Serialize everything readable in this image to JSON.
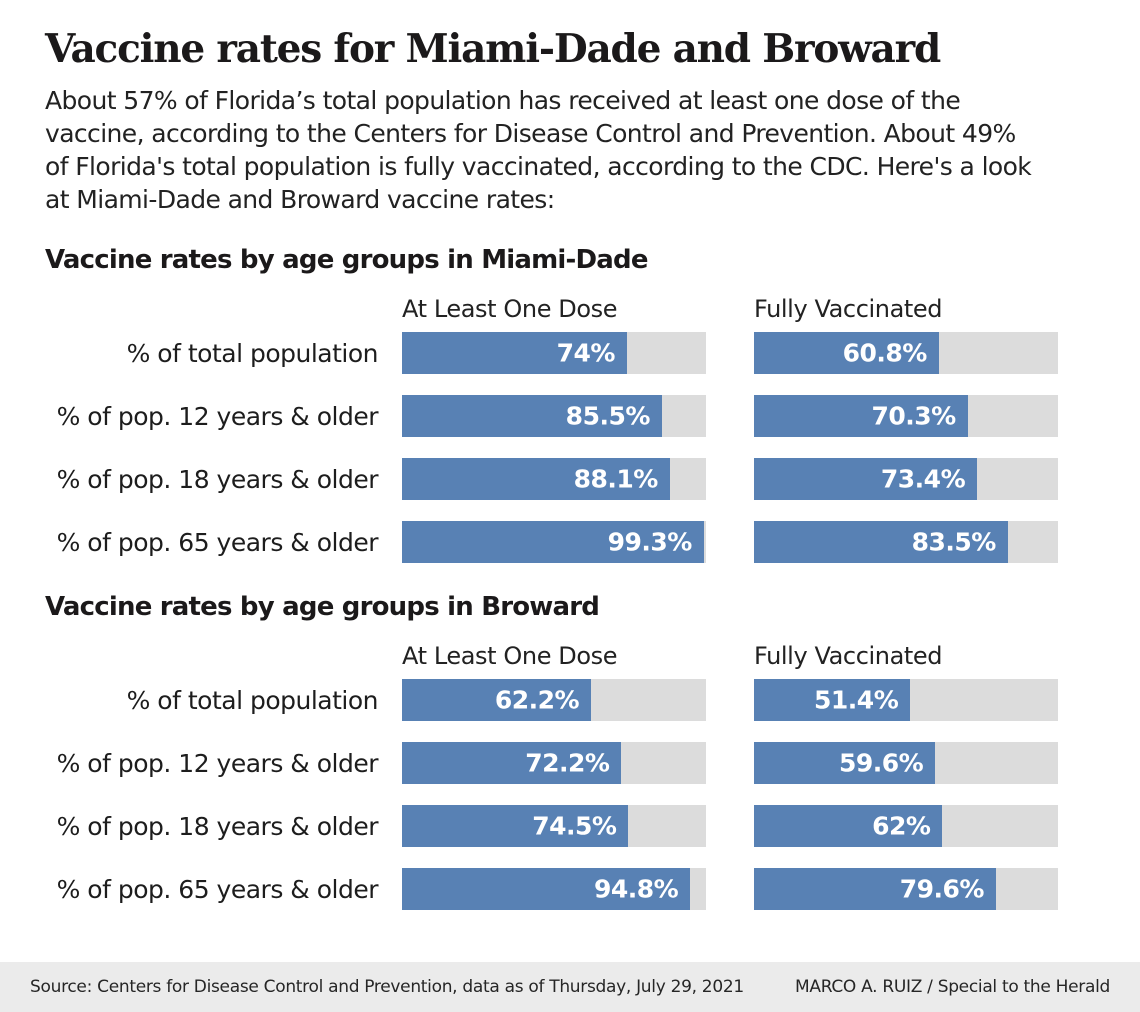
{
  "header": {
    "title": "Vaccine rates for Miami-Dade and Broward",
    "intro_lines": [
      "About 57% of Florida’s total population has received at least one dose of the",
      "vaccine, according to the Centers for Disease Control and Prevention. About 49%",
      "of Florida's total population is fully vaccinated, according to the CDC. Here's a look",
      "at Miami-Dade and Broward vaccine rates:"
    ]
  },
  "chart_data": [
    {
      "type": "bar",
      "orientation": "horizontal",
      "title": "Vaccine rates by age groups in Miami-Dade",
      "xlim": [
        0,
        100
      ],
      "grid": false,
      "categories": [
        "% of total population",
        "% of pop. 12 years & older",
        "% of pop. 18 years & older",
        "% of pop. 65 years & older"
      ],
      "series": [
        {
          "name": "At Least One Dose",
          "values": [
            74,
            85.5,
            88.1,
            99.3
          ],
          "labels": [
            "74%",
            "85.5%",
            "88.1%",
            "99.3%"
          ]
        },
        {
          "name": "Fully Vaccinated",
          "values": [
            60.8,
            70.3,
            73.4,
            83.5
          ],
          "labels": [
            "60.8%",
            "70.3%",
            "73.4%",
            "83.5%"
          ]
        }
      ]
    },
    {
      "type": "bar",
      "orientation": "horizontal",
      "title": "Vaccine rates by age groups in Broward",
      "xlim": [
        0,
        100
      ],
      "grid": false,
      "categories": [
        "% of total population",
        "% of pop. 12 years & older",
        "% of pop. 18 years & older",
        "% of pop. 65 years & older"
      ],
      "series": [
        {
          "name": "At Least One Dose",
          "values": [
            62.2,
            72.2,
            74.5,
            94.8
          ],
          "labels": [
            "62.2%",
            "72.2%",
            "74.5%",
            "94.8%"
          ]
        },
        {
          "name": "Fully Vaccinated",
          "values": [
            51.4,
            59.6,
            62,
            79.6
          ],
          "labels": [
            "51.4%",
            "59.6%",
            "62%",
            "79.6%"
          ]
        }
      ]
    }
  ],
  "colors": {
    "bar_fill": "#5881b4",
    "bar_track": "#dcdcdc",
    "footer_background": "#ebebeb",
    "text": "#1d1d1d"
  },
  "footer": {
    "source": "Source: Centers for Disease Control and Prevention, data as of Thursday, July 29, 2021",
    "credit": "MARCO A. RUIZ / Special to the Herald"
  }
}
